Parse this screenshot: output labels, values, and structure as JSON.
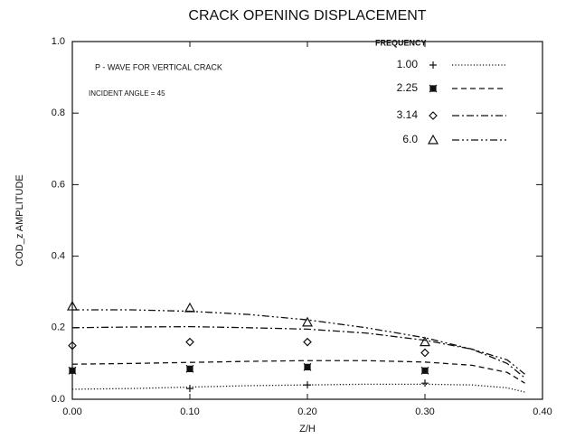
{
  "chart_data": {
    "type": "line",
    "title": "CRACK OPENING DISPLACEMENT",
    "xlabel": "Z/H",
    "ylabel": "COD_z AMPLITUDE",
    "annotations": [
      "P - WAVE FOR VERTICAL CRACK",
      "INCIDENT ANGLE = 45"
    ],
    "legend_title": "FREQUENCY",
    "legend": "upper right",
    "xlim": [
      0,
      0.4
    ],
    "ylim": [
      0,
      1.0
    ],
    "xticks": [
      {
        "value": 0,
        "label": "0.00"
      },
      {
        "value": 0.1,
        "label": "0.10"
      },
      {
        "value": 0.2,
        "label": "0.20"
      },
      {
        "value": 0.3,
        "label": "0.30"
      },
      {
        "value": 0.4,
        "label": "0.40"
      }
    ],
    "yticks": [
      {
        "value": 0,
        "label": "0.0"
      },
      0.2,
      0.4,
      0.6,
      0.8,
      {
        "value": 1,
        "label": "1.0"
      }
    ],
    "color": "#111111",
    "series": [
      {
        "name": "1.00",
        "marker": "plus",
        "linestyle": "dotted",
        "x": [
          0,
          0.05,
          0.1,
          0.15,
          0.2,
          0.25,
          0.3,
          0.34,
          0.37,
          0.385
        ],
        "values": [
          0.028,
          0.03,
          0.034,
          0.038,
          0.04,
          0.042,
          0.042,
          0.04,
          0.032,
          0.02
        ],
        "marker_x": [
          0.1,
          0.2,
          0.3
        ],
        "marker_values": [
          0.03,
          0.04,
          0.045
        ]
      },
      {
        "name": "2.25",
        "marker": "star",
        "linestyle": "dashed",
        "x": [
          0,
          0.05,
          0.1,
          0.15,
          0.2,
          0.25,
          0.3,
          0.34,
          0.37,
          0.385
        ],
        "values": [
          0.098,
          0.1,
          0.103,
          0.106,
          0.108,
          0.108,
          0.104,
          0.095,
          0.075,
          0.045
        ],
        "marker_x": [
          0,
          0.1,
          0.2,
          0.3
        ],
        "marker_values": [
          0.08,
          0.085,
          0.09,
          0.08
        ]
      },
      {
        "name": "3.14",
        "marker": "diamond",
        "linestyle": "dashdot",
        "x": [
          0,
          0.05,
          0.1,
          0.15,
          0.2,
          0.25,
          0.3,
          0.34,
          0.37,
          0.385
        ],
        "values": [
          0.2,
          0.202,
          0.203,
          0.2,
          0.196,
          0.185,
          0.165,
          0.14,
          0.1,
          0.06
        ],
        "marker_x": [
          0,
          0.1,
          0.2,
          0.3
        ],
        "marker_values": [
          0.15,
          0.16,
          0.16,
          0.13
        ]
      },
      {
        "name": "6.0",
        "marker": "triangle",
        "linestyle": "dashdotdot",
        "x": [
          0,
          0.05,
          0.1,
          0.15,
          0.2,
          0.25,
          0.3,
          0.34,
          0.37,
          0.385
        ],
        "values": [
          0.25,
          0.25,
          0.246,
          0.237,
          0.222,
          0.2,
          0.172,
          0.14,
          0.11,
          0.07
        ],
        "marker_x": [
          0,
          0.1,
          0.2,
          0.3
        ],
        "marker_values": [
          0.26,
          0.255,
          0.215,
          0.16
        ]
      }
    ]
  }
}
